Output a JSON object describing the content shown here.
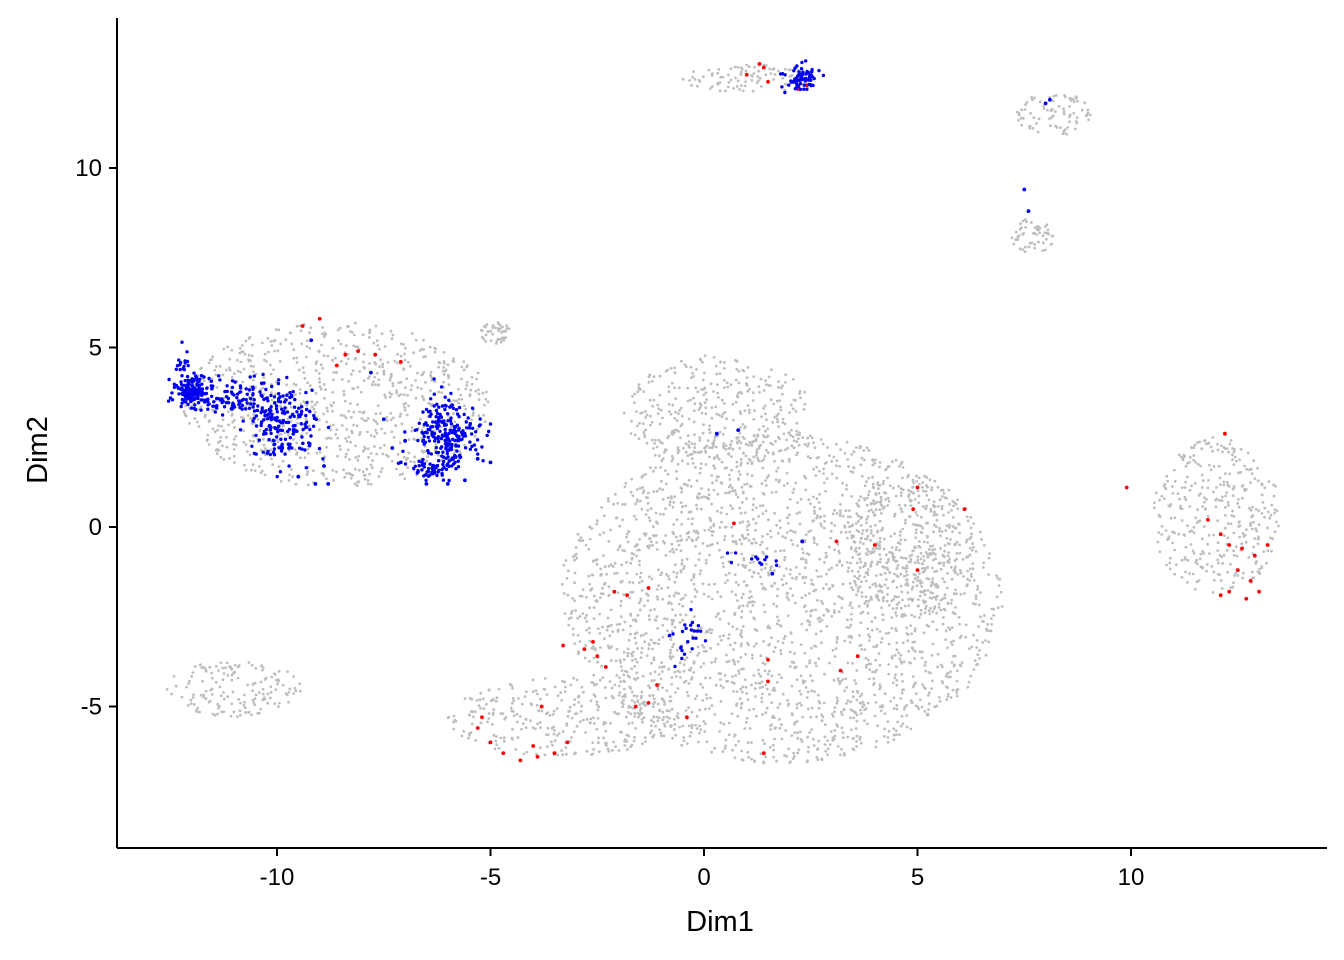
{
  "chart_data": {
    "type": "scatter",
    "title": "",
    "xlabel": "Dim1",
    "ylabel": "Dim2",
    "xlim": [
      -13.6,
      14.5
    ],
    "ylim": [
      -8.9,
      14.1
    ],
    "xticks": [
      -10,
      -5,
      0,
      5,
      10
    ],
    "yticks": [
      -5,
      0,
      5,
      10
    ],
    "xtick_labels": [
      "-10",
      "-5",
      "0",
      "5",
      "10"
    ],
    "ytick_labels": [
      "-5",
      "0",
      "5",
      "10"
    ],
    "grid": false,
    "legend": "none",
    "colors": {
      "background_cells": "#bebebe",
      "red_group": "#ff0000",
      "blue_group": "#0000ee",
      "axis": "#000000"
    },
    "background_clusters": [
      {
        "region": "large central cluster",
        "cx": 1.8,
        "cy": -2.0,
        "rx": 5.2,
        "ry": 4.6
      },
      {
        "region": "upper-central lobe",
        "cx": 0.3,
        "cy": 3.2,
        "rx": 2.2,
        "ry": 1.6
      },
      {
        "region": "left tail",
        "cx": -3.3,
        "cy": -5.3,
        "rx": 2.7,
        "ry": 1.1
      },
      {
        "region": "right extension",
        "cx": 4.8,
        "cy": -0.5,
        "rx": 1.5,
        "ry": 2.0
      },
      {
        "region": "left cluster",
        "cx": -8.6,
        "cy": 3.4,
        "rx": 3.6,
        "ry": 2.3
      },
      {
        "region": "right cluster",
        "cx": 12.0,
        "cy": 0.3,
        "rx": 1.5,
        "ry": 2.2
      },
      {
        "region": "top island",
        "cx": 1.1,
        "cy": 12.5,
        "rx": 1.6,
        "ry": 0.4
      },
      {
        "region": "top-right island upper",
        "cx": 8.2,
        "cy": 11.5,
        "rx": 0.9,
        "ry": 0.6
      },
      {
        "region": "top-right island lower",
        "cx": 7.7,
        "cy": 8.1,
        "rx": 0.5,
        "ry": 0.5
      },
      {
        "region": "bottom-left island",
        "cx": -11.0,
        "cy": -4.5,
        "rx": 1.6,
        "ry": 0.8
      },
      {
        "region": "small island",
        "cx": -4.9,
        "cy": 5.4,
        "rx": 0.4,
        "ry": 0.3
      }
    ],
    "series": [
      {
        "color": "red",
        "points": [
          [
            -9.4,
            5.6
          ],
          [
            -9.0,
            5.8
          ],
          [
            -8.4,
            4.8
          ],
          [
            -8.1,
            4.9
          ],
          [
            -7.7,
            4.8
          ],
          [
            -7.1,
            4.6
          ],
          [
            -8.6,
            4.5
          ],
          [
            1.3,
            12.9
          ],
          [
            1.0,
            12.6
          ],
          [
            1.5,
            12.4
          ],
          [
            1.4,
            12.8
          ],
          [
            2.2,
            12.2
          ],
          [
            2.4,
            12.3
          ],
          [
            -5.3,
            -5.6
          ],
          [
            -5.0,
            -6.0
          ],
          [
            -4.7,
            -6.3
          ],
          [
            -4.3,
            -6.5
          ],
          [
            -3.9,
            -6.4
          ],
          [
            -3.5,
            -6.3
          ],
          [
            -3.2,
            -6.0
          ],
          [
            -5.2,
            -5.3
          ],
          [
            -4.0,
            -6.1
          ],
          [
            -3.8,
            -5.0
          ],
          [
            -3.3,
            -3.3
          ],
          [
            -2.8,
            -3.4
          ],
          [
            -2.5,
            -3.6
          ],
          [
            -2.3,
            -3.9
          ],
          [
            -2.6,
            -3.2
          ],
          [
            -2.1,
            -1.8
          ],
          [
            -1.8,
            -1.9
          ],
          [
            -1.3,
            -1.7
          ],
          [
            -1.1,
            -4.4
          ],
          [
            -1.3,
            -4.9
          ],
          [
            -0.4,
            -5.3
          ],
          [
            -1.6,
            -5.0
          ],
          [
            0.7,
            0.1
          ],
          [
            1.5,
            -3.7
          ],
          [
            1.5,
            -4.3
          ],
          [
            1.4,
            -6.3
          ],
          [
            2.3,
            -0.4
          ],
          [
            3.1,
            -0.4
          ],
          [
            3.2,
            -4.0
          ],
          [
            3.6,
            -3.6
          ],
          [
            4.0,
            -0.5
          ],
          [
            4.9,
            0.5
          ],
          [
            5.0,
            1.1
          ],
          [
            5.0,
            -1.2
          ],
          [
            6.1,
            0.5
          ],
          [
            9.9,
            1.1
          ],
          [
            12.2,
            2.6
          ],
          [
            11.8,
            0.2
          ],
          [
            12.3,
            -0.5
          ],
          [
            12.6,
            -0.6
          ],
          [
            12.9,
            -0.8
          ],
          [
            13.2,
            -0.5
          ],
          [
            12.5,
            -1.2
          ],
          [
            12.8,
            -1.5
          ],
          [
            13.0,
            -1.8
          ],
          [
            12.3,
            -1.8
          ],
          [
            12.1,
            -1.9
          ],
          [
            12.7,
            -2.0
          ],
          [
            12.1,
            -0.2
          ]
        ]
      },
      {
        "color": "blue",
        "blobs": [
          {
            "cx": -12.0,
            "cy": 3.8,
            "rx": 0.35,
            "ry": 0.35,
            "n": 140
          },
          {
            "cx": -11.3,
            "cy": 3.6,
            "rx": 0.55,
            "ry": 0.35,
            "n": 50
          },
          {
            "cx": -12.2,
            "cy": 4.6,
            "rx": 0.15,
            "ry": 0.3,
            "n": 15
          },
          {
            "cx": -9.9,
            "cy": 2.8,
            "rx": 0.7,
            "ry": 1.0,
            "n": 190
          },
          {
            "cx": -10.6,
            "cy": 3.6,
            "rx": 0.4,
            "ry": 0.5,
            "n": 40
          },
          {
            "cx": -6.1,
            "cy": 2.6,
            "rx": 0.5,
            "ry": 0.9,
            "n": 170
          },
          {
            "cx": -6.3,
            "cy": 1.6,
            "rx": 0.5,
            "ry": 0.3,
            "n": 60
          },
          {
            "cx": -5.6,
            "cy": 2.6,
            "rx": 0.45,
            "ry": 0.4,
            "n": 40
          },
          {
            "cx": 2.3,
            "cy": 12.5,
            "rx": 0.3,
            "ry": 0.3,
            "n": 70
          },
          {
            "cx": -0.4,
            "cy": -3.0,
            "rx": 0.35,
            "ry": 0.6,
            "n": 24
          },
          {
            "cx": 1.0,
            "cy": -0.9,
            "rx": 0.7,
            "ry": 0.2,
            "n": 12
          }
        ],
        "points": [
          [
            -9.1,
            1.2
          ],
          [
            -8.8,
            1.2
          ],
          [
            -8.9,
            1.7
          ],
          [
            -9.5,
            1.4
          ],
          [
            -7.5,
            3.0
          ],
          [
            -7.3,
            2.2
          ],
          [
            -7.0,
            2.4
          ],
          [
            -7.8,
            4.3
          ],
          [
            -9.2,
            5.2
          ],
          [
            -7.1,
            1.8
          ],
          [
            -5.3,
            1.9
          ],
          [
            -5.0,
            1.8
          ],
          [
            -6.5,
            1.2
          ],
          [
            -6.0,
            1.2
          ],
          [
            -5.6,
            1.3
          ],
          [
            0.8,
            2.7
          ],
          [
            0.3,
            2.6
          ],
          [
            1.6,
            -1.3
          ],
          [
            2.3,
            -0.4
          ],
          [
            8.0,
            11.8
          ],
          [
            8.1,
            11.9
          ],
          [
            7.5,
            9.4
          ],
          [
            7.6,
            8.8
          ]
        ]
      }
    ]
  }
}
